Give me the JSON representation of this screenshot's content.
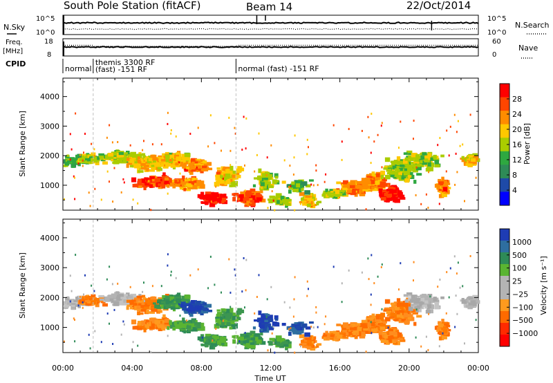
{
  "header": {
    "station": "South Pole Station (fitACF)",
    "beam": "Beam 14",
    "date": "22/Oct/2014"
  },
  "panels": {
    "nsky_label": "N.Sky",
    "nsearch_label": "N.Search",
    "freq_label_1": "Freq.",
    "freq_label_2": "[MHz]",
    "nave_label": "Nave",
    "cpid_label": "CPID",
    "nsky_ticks": [
      "10^5",
      "10^0"
    ],
    "nsearch_ticks": [
      "10^5",
      "10^0"
    ],
    "freq_ticks": [
      "18",
      "8"
    ],
    "nave_ticks": [
      "60",
      "0"
    ],
    "cpid_segments": [
      {
        "start": 0,
        "end": 1.75,
        "lines": [
          "normal"
        ]
      },
      {
        "start": 1.75,
        "end": 10.0,
        "lines": [
          "themis 3300 RF",
          "(fast) -151 RF"
        ]
      },
      {
        "start": 10.0,
        "end": 24,
        "lines": [
          "normal (fast) -151 RF"
        ]
      }
    ]
  },
  "chart_data": [
    {
      "type": "heatmap",
      "name": "power",
      "ylabel": "Slant Range [km]",
      "colorbar_label": "Power [dB]",
      "colorbar_ticks": [
        "28",
        "24",
        "20",
        "16",
        "12",
        "8",
        "4"
      ],
      "colorbar_colors": [
        "#ff0000",
        "#ff4500",
        "#ff8c00",
        "#ffc800",
        "#aacc00",
        "#2ea840",
        "#2e8b57",
        "#1e4aa8",
        "#0000ff"
      ],
      "ylim": [
        180,
        4600
      ],
      "yticks": [
        1000,
        2000,
        3000,
        4000
      ],
      "xlim": [
        0,
        24
      ],
      "xticks": [
        "00:00",
        "04:00",
        "08:00",
        "12:00",
        "16:00",
        "20:00",
        "00:00"
      ]
    },
    {
      "type": "heatmap",
      "name": "velocity",
      "ylabel": "Slant Range [km]",
      "colorbar_label": "Velocity [m s⁻¹]",
      "colorbar_ticks": [
        "1000",
        "500",
        "100",
        "25",
        "−25",
        "−100",
        "−500",
        "−1000"
      ],
      "colorbar_colors": [
        "#1e3cb4",
        "#2e6ea0",
        "#2e8b57",
        "#5ab432",
        "#b4b4b4",
        "#b4b4b4",
        "#ff9a1e",
        "#ff6a00",
        "#ff2a00",
        "#ff0000"
      ],
      "ylim": [
        180,
        4600
      ],
      "yticks": [
        1000,
        2000,
        3000,
        4000
      ],
      "xlim": [
        0,
        24
      ],
      "xticks": [
        "00:00",
        "04:00",
        "08:00",
        "12:00",
        "16:00",
        "20:00",
        "00:00"
      ],
      "xlabel": "Time UT"
    }
  ],
  "colors": {
    "missing_gap": "#c0c0c0",
    "nsky_line": "#000000"
  }
}
